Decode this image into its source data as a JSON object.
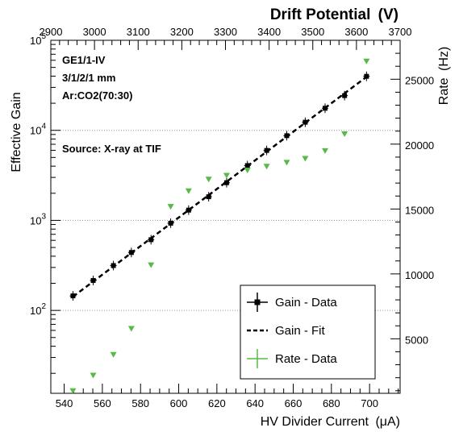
{
  "chart_data": {
    "type": "scatter",
    "title": "",
    "xlabel": "HV Divider Current (μA)",
    "ylabel": "Effective Gain",
    "y2label": "Rate (Hz)",
    "x2label": "Drift Potential (V)",
    "xlim": [
      533,
      716
    ],
    "ylim": [
      12,
      100000
    ],
    "y_scale": "log",
    "y2lim": [
      800,
      28000
    ],
    "x2lim": [
      2900,
      3700
    ],
    "grid": "horizontal dotted at gain decades",
    "legend_position": "bottom-right",
    "x_ticks": [
      "540",
      "560",
      "580",
      "600",
      "620",
      "640",
      "660",
      "680",
      "700"
    ],
    "x2_ticks": [
      "2900",
      "3000",
      "3100",
      "3200",
      "3300",
      "3400",
      "3500",
      "3600",
      "3700"
    ],
    "y2_ticks": [
      "5000",
      "10000",
      "15000",
      "20000",
      "25000"
    ],
    "annotations": [
      "GE1/1-IV",
      "3/1/2/1 mm",
      "Ar:CO2(70:30)",
      "Source: X-ray at TIF"
    ],
    "series": [
      {
        "name": "Gain - Data",
        "axis": "left",
        "color": "#000000",
        "x": [
          544.6,
          555.2,
          565.8,
          575.2,
          585.5,
          595.8,
          605.2,
          615.7,
          625.1,
          636.0,
          646.1,
          656.6,
          666.3,
          676.7,
          686.9,
          698.4
        ],
        "y": [
          145,
          215,
          315,
          440,
          610,
          930,
          1300,
          1830,
          2620,
          4060,
          5980,
          8720,
          12300,
          17600,
          24300,
          39800
        ]
      },
      {
        "name": "Gain - Fit",
        "axis": "left",
        "color": "#000000",
        "style": "dashed",
        "x": [
          544.6,
          698.4
        ],
        "y": [
          142,
          39200
        ]
      },
      {
        "name": "Rate - Data",
        "axis": "right",
        "color": "#55bb44",
        "x": [
          544.6,
          555.2,
          565.8,
          575.2,
          585.5,
          595.8,
          605.2,
          615.7,
          625.1,
          636.0,
          646.1,
          656.6,
          666.3,
          676.7,
          686.9,
          698.4
        ],
        "y": [
          1000,
          2200,
          3800,
          5800,
          10700,
          15200,
          16400,
          17300,
          17600,
          18000,
          18300,
          18600,
          18900,
          19500,
          20800,
          26400
        ]
      }
    ]
  },
  "labels": {
    "left_tick_base": "10",
    "left_tick_exps": [
      "2",
      "3",
      "4",
      "5"
    ],
    "x_title_main": "HV Divider Current",
    "x_title_unit": "(μA)",
    "x2_title_main": "Drift Potential",
    "x2_title_unit": "(V)",
    "y2_title_main": "Rate",
    "y2_title_unit": "(Hz)"
  },
  "colors": {
    "gain": "#000000",
    "rate": "#55bb44",
    "grid": "#999999"
  }
}
